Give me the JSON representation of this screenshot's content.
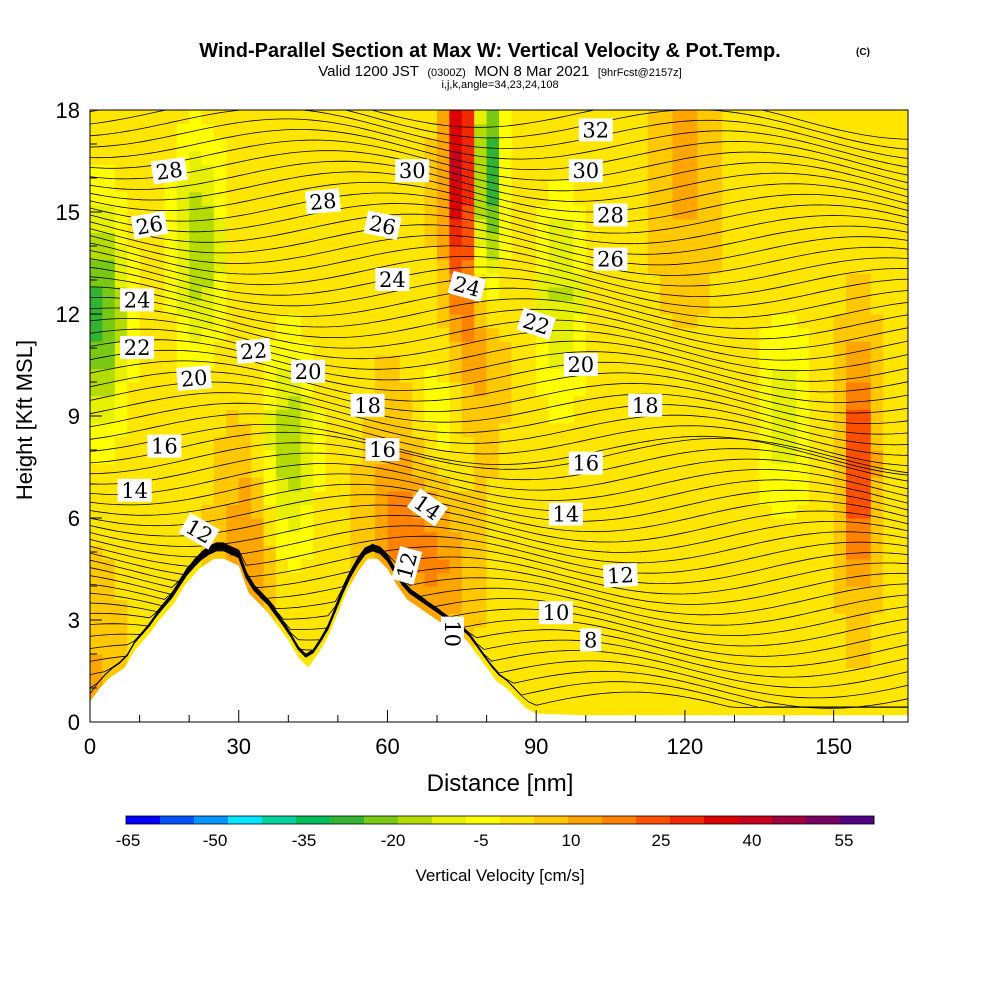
{
  "chart_data": {
    "type": "heatmap",
    "title": "Wind-Parallel Section at Max W: Vertical Velocity & Pot.Temp.",
    "title_mark": "(C)",
    "subtitle": {
      "valid": "Valid 1200 JST",
      "utc": "(0300Z)",
      "date": "MON 8 Mar 2021",
      "fcst": "[9hrFcst@2157z]"
    },
    "indices": "i,j,k,angle=34,23,24,108",
    "xlabel": "Distance [nm]",
    "ylabel": "Height [Kft MSL]",
    "xlim": [
      0,
      165
    ],
    "ylim": [
      0,
      18
    ],
    "xticks": [
      "0",
      "30",
      "60",
      "90",
      "120",
      "150"
    ],
    "yticks": [
      "0",
      "3",
      "6",
      "9",
      "12",
      "15",
      "18"
    ],
    "colorbar": {
      "label": "Vertical Velocity [cm/s]",
      "tick_labels": [
        "-65",
        "-50",
        "-35",
        "-20",
        "-5",
        "10",
        "25",
        "40",
        "55"
      ],
      "colors": [
        "#0000ff",
        "#0050ff",
        "#0096ff",
        "#00e6ff",
        "#00d2a0",
        "#00be5a",
        "#32b432",
        "#78c814",
        "#b4dc00",
        "#e6f000",
        "#ffff00",
        "#ffe600",
        "#ffc800",
        "#ffa500",
        "#ff8200",
        "#ff5000",
        "#f02800",
        "#dc0000",
        "#c8001e",
        "#a0003c",
        "#780064",
        "#500082"
      ]
    },
    "terrain_kft": [
      [
        0,
        0.6
      ],
      [
        2,
        1.0
      ],
      [
        4,
        1.3
      ],
      [
        7,
        1.6
      ],
      [
        9,
        2.1
      ],
      [
        12,
        2.6
      ],
      [
        14,
        3.0
      ],
      [
        17,
        3.5
      ],
      [
        19,
        4.0
      ],
      [
        22,
        4.5
      ],
      [
        25,
        4.8
      ],
      [
        27,
        4.8
      ],
      [
        30,
        4.6
      ],
      [
        32,
        3.8
      ],
      [
        34,
        3.5
      ],
      [
        36,
        3.2
      ],
      [
        38,
        2.8
      ],
      [
        40,
        2.4
      ],
      [
        42,
        1.9
      ],
      [
        44,
        1.6
      ],
      [
        46,
        2.0
      ],
      [
        48,
        2.5
      ],
      [
        50,
        3.2
      ],
      [
        52,
        3.9
      ],
      [
        54,
        4.4
      ],
      [
        56,
        4.8
      ],
      [
        58,
        4.8
      ],
      [
        60,
        4.5
      ],
      [
        62,
        4.0
      ],
      [
        64,
        3.6
      ],
      [
        66,
        3.4
      ],
      [
        68,
        3.2
      ],
      [
        70,
        3.0
      ],
      [
        72,
        2.8
      ],
      [
        74,
        2.6
      ],
      [
        76,
        2.4
      ],
      [
        78,
        2.0
      ],
      [
        80,
        1.6
      ],
      [
        82,
        1.2
      ],
      [
        84,
        1.0
      ],
      [
        86,
        0.7
      ],
      [
        88,
        0.4
      ],
      [
        90,
        0.25
      ],
      [
        100,
        0.2
      ],
      [
        165,
        0.2
      ]
    ],
    "updraft_features_cms": [
      {
        "x_nm": 75,
        "z_kft": 16.5,
        "w": 48
      },
      {
        "x_nm": 76,
        "z_kft": 11.0,
        "w": 20
      },
      {
        "x_nm": 71,
        "z_kft": 5.5,
        "w": 22
      },
      {
        "x_nm": 62,
        "z_kft": 5.8,
        "w": 18
      },
      {
        "x_nm": 32,
        "z_kft": 5.0,
        "w": 17
      },
      {
        "x_nm": 155,
        "z_kft": 7.5,
        "w": 32
      },
      {
        "x_nm": 120,
        "z_kft": 16.5,
        "w": 14
      },
      {
        "x_nm": 0,
        "z_kft": 1.0,
        "w": 12
      }
    ],
    "downdraft_features_cms": [
      {
        "x_nm": 80,
        "z_kft": 16.0,
        "w": -35
      },
      {
        "x_nm": 2,
        "z_kft": 12.0,
        "w": -28
      },
      {
        "x_nm": 40,
        "z_kft": 8.0,
        "w": -18
      },
      {
        "x_nm": 22,
        "z_kft": 14.0,
        "w": -18
      },
      {
        "x_nm": 95,
        "z_kft": 12.5,
        "w": -14
      },
      {
        "x_nm": 72,
        "z_kft": 8.5,
        "w": -15
      },
      {
        "x_nm": 140,
        "z_kft": 9.0,
        "w": -10
      }
    ],
    "theta_contour_labels": [
      {
        "text": "28",
        "x": 16,
        "z": 16.2,
        "angle": -8
      },
      {
        "text": "26",
        "x": 12,
        "z": 14.6,
        "angle": -10
      },
      {
        "text": "24",
        "x": 9.5,
        "z": 12.4,
        "angle": 0
      },
      {
        "text": "22",
        "x": 9.5,
        "z": 11.0,
        "angle": 0
      },
      {
        "text": "20",
        "x": 21,
        "z": 10.1,
        "angle": -5
      },
      {
        "text": "16",
        "x": 15,
        "z": 8.1,
        "angle": 0
      },
      {
        "text": "14",
        "x": 9,
        "z": 6.8,
        "angle": 0
      },
      {
        "text": "12",
        "x": 22,
        "z": 5.6,
        "angle": 30
      },
      {
        "text": "28",
        "x": 47,
        "z": 15.3,
        "angle": -5
      },
      {
        "text": "22",
        "x": 33,
        "z": 10.9,
        "angle": -5
      },
      {
        "text": "20",
        "x": 44,
        "z": 10.3,
        "angle": 0
      },
      {
        "text": "30",
        "x": 65,
        "z": 16.2,
        "angle": 0
      },
      {
        "text": "26",
        "x": 59,
        "z": 14.6,
        "angle": 12
      },
      {
        "text": "24",
        "x": 61,
        "z": 13.0,
        "angle": 0
      },
      {
        "text": "18",
        "x": 56,
        "z": 9.3,
        "angle": 0
      },
      {
        "text": "16",
        "x": 59,
        "z": 8.0,
        "angle": 0
      },
      {
        "text": "14",
        "x": 68,
        "z": 6.3,
        "angle": 35
      },
      {
        "text": "12",
        "x": 64,
        "z": 4.6,
        "angle": -75
      },
      {
        "text": "10",
        "x": 73,
        "z": 2.6,
        "angle": 90
      },
      {
        "text": "24",
        "x": 76,
        "z": 12.8,
        "angle": 15
      },
      {
        "text": "22",
        "x": 90,
        "z": 11.7,
        "angle": 18
      },
      {
        "text": "32",
        "x": 102,
        "z": 17.4,
        "angle": 0
      },
      {
        "text": "30",
        "x": 100,
        "z": 16.2,
        "angle": 0
      },
      {
        "text": "28",
        "x": 105,
        "z": 14.9,
        "angle": 0
      },
      {
        "text": "26",
        "x": 105,
        "z": 13.6,
        "angle": 0
      },
      {
        "text": "20",
        "x": 99,
        "z": 10.5,
        "angle": 0
      },
      {
        "text": "18",
        "x": 112,
        "z": 9.3,
        "angle": 0
      },
      {
        "text": "16",
        "x": 100,
        "z": 7.6,
        "angle": 0
      },
      {
        "text": "14",
        "x": 96,
        "z": 6.1,
        "angle": 0
      },
      {
        "text": "12",
        "x": 107,
        "z": 4.3,
        "angle": -3
      },
      {
        "text": "10",
        "x": 94,
        "z": 3.2,
        "angle": 0
      },
      {
        "text": "8",
        "x": 101,
        "z": 2.4,
        "angle": 0
      }
    ]
  }
}
